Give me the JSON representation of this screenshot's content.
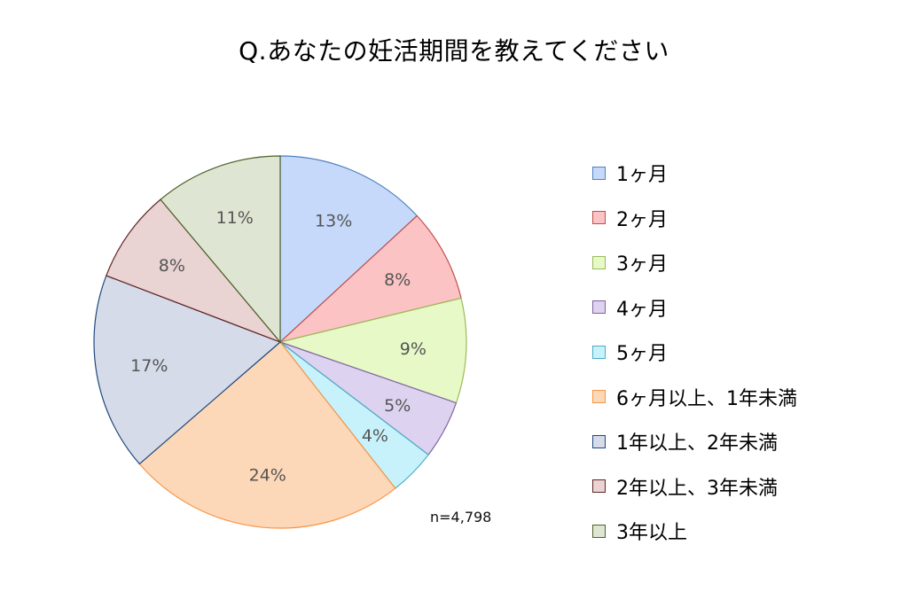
{
  "title": "Q.あなたの妊活期間を教えてください",
  "sample_note": "n=4,798",
  "chart_data": {
    "type": "pie",
    "title": "Q.あなたの妊活期間を教えてください",
    "categories": [
      "1ヶ月",
      "2ヶ月",
      "3ヶ月",
      "4ヶ月",
      "5ヶ月",
      "6ヶ月以上、1年未満",
      "1年以上、2年未満",
      "2年以上、3年未満",
      "3年以上"
    ],
    "values": [
      13,
      8,
      9,
      5,
      4,
      24,
      17,
      8,
      11
    ],
    "value_labels": [
      "13%",
      "8%",
      "9%",
      "5%",
      "4%",
      "24%",
      "17%",
      "8%",
      "11%"
    ],
    "colors": [
      "#c6d9fb",
      "#fbc3c3",
      "#e6f9c6",
      "#ddd2ef",
      "#c8f2fb",
      "#fdd8b8",
      "#d5dbe9",
      "#e9d3d3",
      "#dee6d3"
    ],
    "border_colors": [
      "#4f81bd",
      "#c0504d",
      "#9bbb59",
      "#8064a2",
      "#4bacc6",
      "#f79646",
      "#1f497d",
      "#632523",
      "#4f6228"
    ],
    "legend_position": "right",
    "start_angle": "12 o'clock",
    "direction": "clockwise"
  }
}
